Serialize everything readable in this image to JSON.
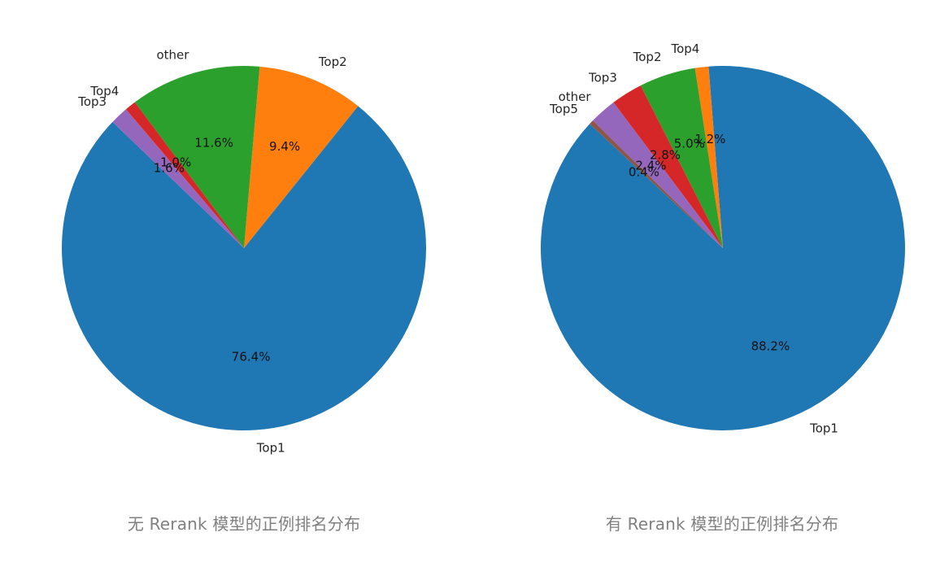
{
  "chart_data": [
    {
      "type": "pie",
      "caption": "无 Rerank 模型的正例排名分布",
      "slices": [
        {
          "label": "Top1",
          "value": 76.4,
          "pct_text": "76.4%",
          "color": "#1f77b4"
        },
        {
          "label": "Top2",
          "value": 9.4,
          "pct_text": "9.4%",
          "color": "#ff7f0e"
        },
        {
          "label": "other",
          "value": 11.6,
          "pct_text": "11.6%",
          "color": "#2ca02c"
        },
        {
          "label": "Top4",
          "value": 1.0,
          "pct_text": "1.0%",
          "color": "#d62728"
        },
        {
          "label": "Top3",
          "value": 1.6,
          "pct_text": "1.6%",
          "color": "#9467bd"
        }
      ]
    },
    {
      "type": "pie",
      "caption": "有 Rerank 模型的正例排名分布",
      "slices": [
        {
          "label": "Top1",
          "value": 88.2,
          "pct_text": "88.2%",
          "color": "#1f77b4"
        },
        {
          "label": "Top4",
          "value": 1.2,
          "pct_text": "1.2%",
          "color": "#ff7f0e"
        },
        {
          "label": "Top2",
          "value": 5.0,
          "pct_text": "5.0%",
          "color": "#2ca02c"
        },
        {
          "label": "Top3",
          "value": 2.8,
          "pct_text": "2.8%",
          "color": "#d62728"
        },
        {
          "label": "other",
          "value": 2.4,
          "pct_text": "2.4%",
          "color": "#9467bd"
        },
        {
          "label": "Top5",
          "value": 0.4,
          "pct_text": "0.4%",
          "color": "#8c564b"
        }
      ]
    }
  ]
}
